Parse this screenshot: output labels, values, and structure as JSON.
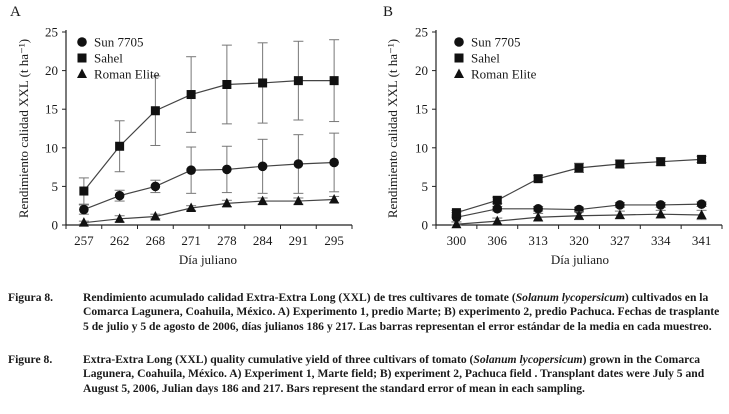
{
  "chart_data": [
    {
      "type": "line",
      "panel_label": "A",
      "ylabel": "Rendimiento calidad XXL (t ha⁻¹)",
      "xlabel": "Día juliano",
      "categories": [
        "257",
        "262",
        "268",
        "271",
        "278",
        "284",
        "291",
        "295"
      ],
      "ylim": [
        0,
        25
      ],
      "yticks": [
        "0",
        "5",
        "10",
        "15",
        "20",
        "25"
      ],
      "legend_position": "top-left",
      "series": [
        {
          "name": "Sun 7705",
          "marker": "circle",
          "values": [
            2.0,
            3.8,
            5.0,
            7.1,
            7.2,
            7.6,
            7.9,
            8.1
          ],
          "errors": [
            0.6,
            0.7,
            0.8,
            3.0,
            3.0,
            3.5,
            3.8,
            3.8
          ]
        },
        {
          "name": "Sahel",
          "marker": "square",
          "values": [
            4.4,
            10.2,
            14.8,
            16.9,
            18.2,
            18.4,
            18.7,
            18.7
          ],
          "errors": [
            1.7,
            3.3,
            4.5,
            4.9,
            5.1,
            5.2,
            5.1,
            5.3
          ]
        },
        {
          "name": "Roman Elite",
          "marker": "triangle",
          "values": [
            0.3,
            0.8,
            1.1,
            2.2,
            2.8,
            3.1,
            3.1,
            3.3
          ],
          "errors": [
            0.2,
            0.4,
            0.3,
            0.3,
            0.4,
            0.4,
            0.4,
            0.4
          ]
        }
      ]
    },
    {
      "type": "line",
      "panel_label": "B",
      "ylabel": "Rendimiento calidad XXL (t ha⁻¹)",
      "xlabel": "Día juliano",
      "categories": [
        "300",
        "306",
        "313",
        "320",
        "327",
        "334",
        "341"
      ],
      "ylim": [
        0,
        25
      ],
      "yticks": [
        "0",
        "5",
        "10",
        "15",
        "20",
        "25"
      ],
      "legend_position": "top-left",
      "series": [
        {
          "name": "Sun 7705",
          "marker": "circle",
          "values": [
            1.0,
            2.1,
            2.1,
            2.0,
            2.6,
            2.6,
            2.7
          ],
          "errors": [
            0.6,
            0.3,
            0.3,
            0.3,
            0.3,
            0.3,
            0.3
          ]
        },
        {
          "name": "Sahel",
          "marker": "square",
          "values": [
            1.6,
            3.2,
            6.0,
            7.4,
            7.9,
            8.2,
            8.5
          ],
          "errors": [
            0.3,
            0.4,
            0.4,
            0.6,
            0.5,
            0.5,
            0.4
          ]
        },
        {
          "name": "Roman Elite",
          "marker": "triangle",
          "values": [
            0.1,
            0.5,
            1.0,
            1.2,
            1.3,
            1.4,
            1.3
          ],
          "errors": [
            0.3,
            0.4,
            0.5,
            0.5,
            0.5,
            0.5,
            0.6
          ]
        }
      ]
    }
  ],
  "caption_es": {
    "label": "Figura 8.",
    "part1": "Rendimiento acumulado calidad Extra-Extra Long (XXL) de tres cultivares de tomate (",
    "species": "Solanum lycopersicum",
    "part2": ") cultivados en la Comarca Lagunera, Coahuila, México. A) Experimento 1, predio Marte; B) experimento 2, predio Pachuca. Fechas de trasplante 5 de julio y 5 de agosto de 2006, días julianos 186 y 217. Las barras representan el error estándar de la media en cada muestreo."
  },
  "caption_en": {
    "label": "Figure 8.",
    "part1": "Extra-Extra Long (XXL) quality cumulative yield of three cultivars of tomato (",
    "species": "Solanum lycopersicum",
    "part2": ") grown in the Comarca Lagunera, Coahuila, México. A) Experiment 1, Marte field; B) experiment 2, Pachuca field . Transplant dates were July 5 and August 5, 2006, Julian days 186 and 217. Bars represent the standard error of mean in each sampling."
  }
}
